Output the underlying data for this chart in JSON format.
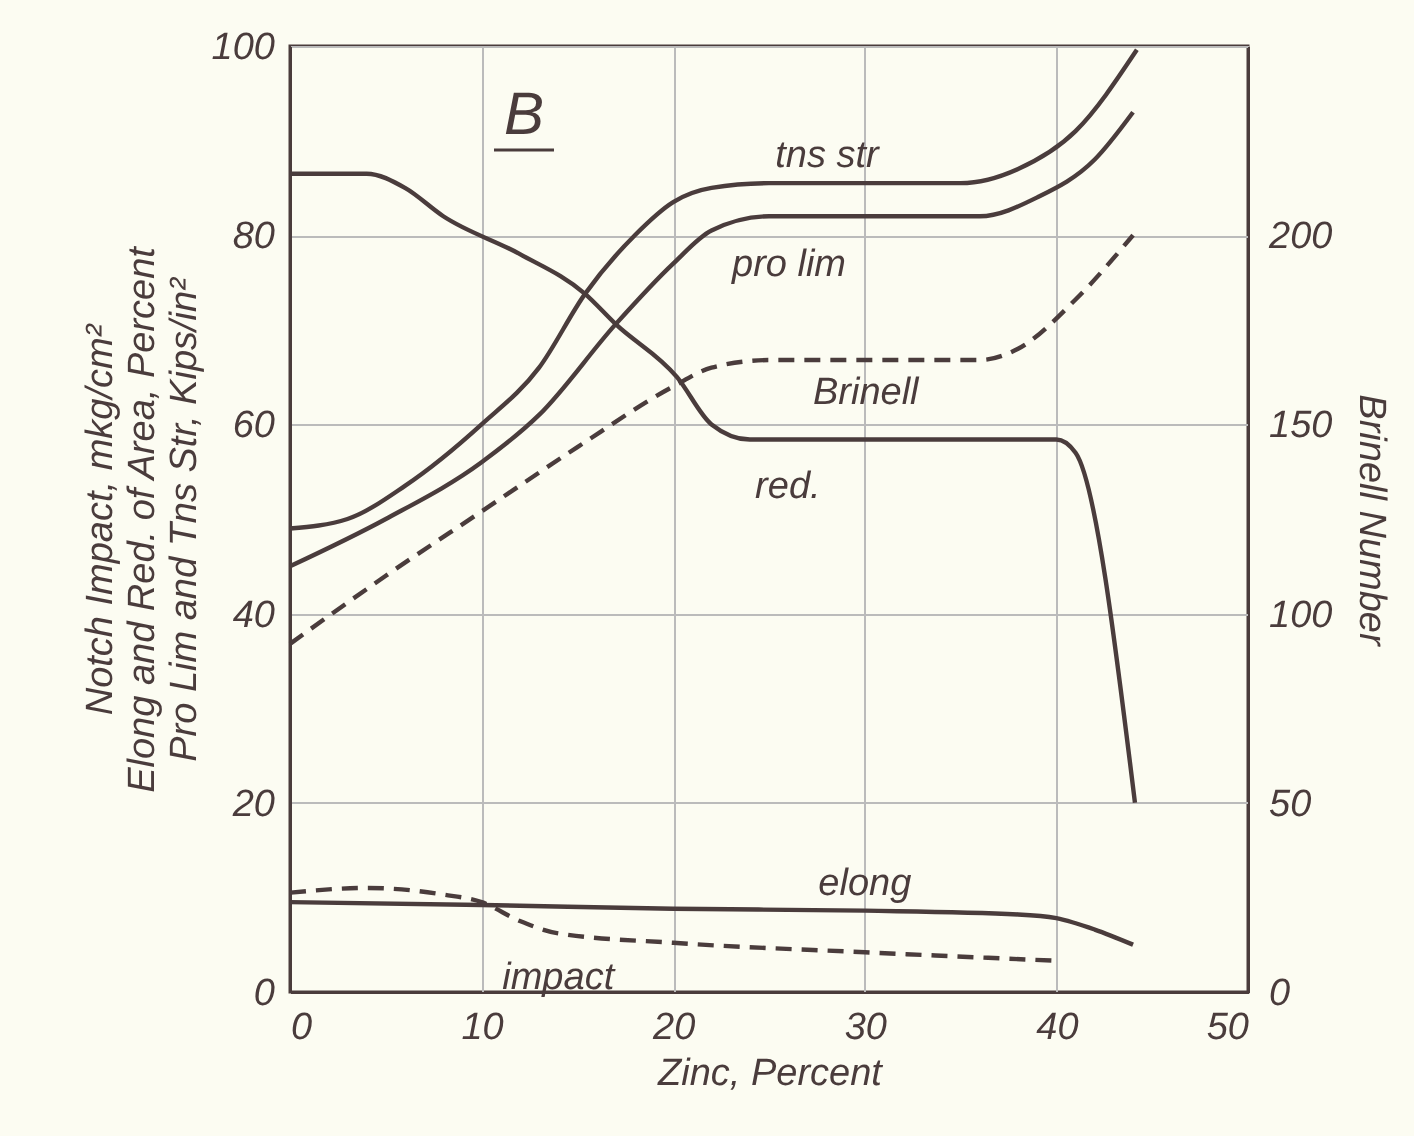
{
  "chart_data": {
    "type": "line",
    "xlabel": "Zinc, Percent",
    "ylabel": "Notch Impact, mkg/cm²\nElong and Red. of Area, Percent\nPro Lim and Tns Str, Kips/in²",
    "y2label": "Brinell Number",
    "xlim": [
      0,
      50
    ],
    "xticks": [
      0,
      10,
      20,
      30,
      40,
      50
    ],
    "ylim": [
      0,
      100
    ],
    "yticks": [
      0,
      20,
      40,
      60,
      80,
      100
    ],
    "y2lim": [
      0,
      250
    ],
    "y2ticks": [
      0,
      50,
      100,
      150,
      200
    ],
    "grid": true,
    "marker": "none",
    "series": [
      {
        "name": "tns str",
        "color": "#4a3c3c",
        "line_style": "solid",
        "x": [
          0,
          3,
          6,
          10,
          13,
          15.4,
          18,
          20,
          22,
          25,
          35,
          38,
          41,
          44.2
        ],
        "values": [
          49,
          50,
          53.5,
          60,
          66,
          73.8,
          80,
          83.5,
          85,
          85.5,
          85.5,
          87,
          91,
          99.6
        ]
      },
      {
        "name": "pro lim",
        "color": "#4a3c3c",
        "line_style": "solid",
        "x": [
          0,
          5,
          10,
          13,
          17,
          20,
          22,
          25,
          36,
          39,
          42,
          44
        ],
        "values": [
          45,
          50,
          56,
          61,
          70.6,
          77,
          80.5,
          82,
          82,
          84,
          88,
          93
        ]
      },
      {
        "name": "Brinell",
        "color": "#4a3c3c",
        "line_style": "dashed",
        "axis": "y2",
        "x": [
          0,
          5,
          10,
          15,
          20,
          22,
          25,
          36,
          38,
          41,
          44
        ],
        "values": [
          92,
          110,
          127,
          144,
          160,
          165,
          167,
          167,
          170,
          183,
          200
        ]
      },
      {
        "name": "red.",
        "color": "#4a3c3c",
        "line_style": "solid",
        "x": [
          0,
          4,
          6,
          8,
          12,
          15.4,
          17,
          20.2,
          22,
          24,
          40,
          41,
          44.1
        ],
        "values": [
          86.5,
          86.5,
          85,
          82,
          78,
          73.8,
          70.6,
          65,
          60,
          58.4,
          58.4,
          57,
          20
        ]
      },
      {
        "name": "elong",
        "color": "#4a3c3c",
        "line_style": "solid",
        "x": [
          0,
          10,
          20,
          30,
          38,
          40,
          42,
          44
        ],
        "values": [
          9.5,
          9.2,
          8.8,
          8.6,
          8.2,
          7.8,
          6.6,
          5
        ]
      },
      {
        "name": "impact",
        "color": "#4a3c3c",
        "line_style": "dashed",
        "x": [
          0,
          4,
          8,
          10,
          12,
          14,
          20,
          30,
          40
        ],
        "values": [
          10.5,
          11,
          10.3,
          9.5,
          7.5,
          6.2,
          5.2,
          4.2,
          3.3
        ]
      }
    ],
    "annotations": [
      "B"
    ]
  }
}
